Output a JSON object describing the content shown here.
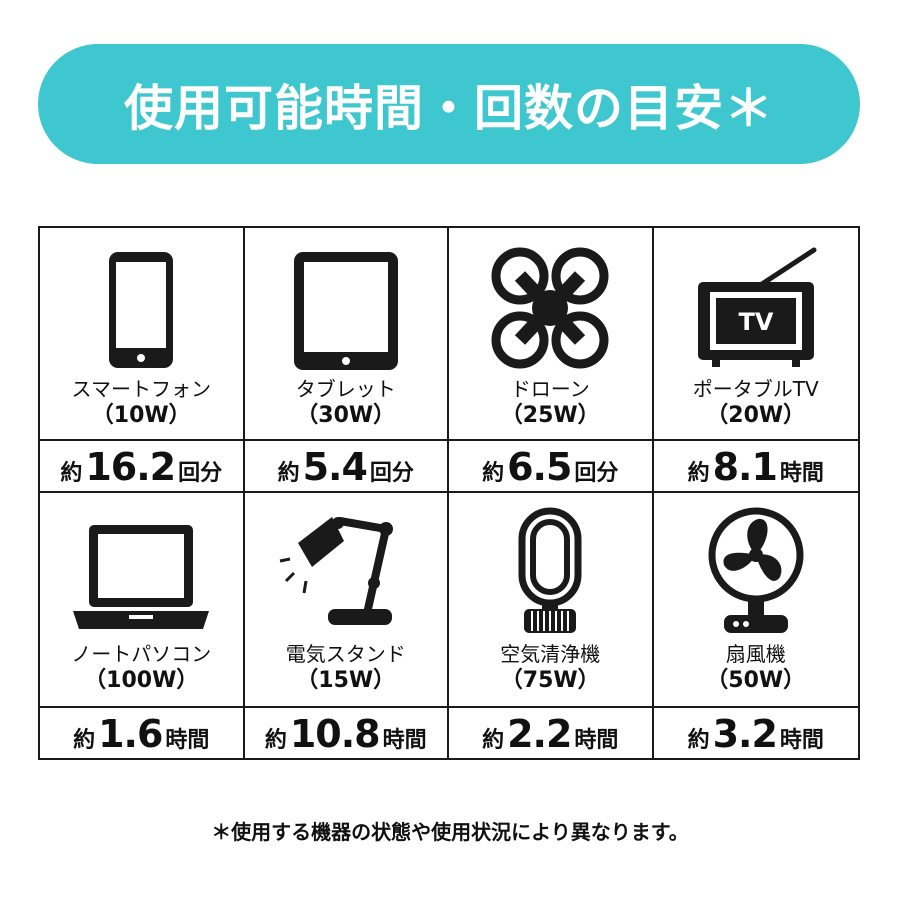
{
  "banner": {
    "title": "使用可能時間・回数の目安＊"
  },
  "colors": {
    "banner_bg": "#3ec7cf",
    "icon": "#1a1a1a"
  },
  "devices": [
    {
      "icon": "smartphone-icon",
      "label": "スマートフォン",
      "watts": "（10W）",
      "approx": "約",
      "value": "16.2",
      "unit": "回分"
    },
    {
      "icon": "tablet-icon",
      "label": "タブレット",
      "watts": "（30W）",
      "approx": "約",
      "value": "5.4",
      "unit": "回分"
    },
    {
      "icon": "drone-icon",
      "label": "ドローン",
      "watts": "（25W）",
      "approx": "約",
      "value": "6.5",
      "unit": "回分"
    },
    {
      "icon": "portable-tv-icon",
      "label": "ポータブルTV",
      "watts": "（20W）",
      "approx": "約",
      "value": "8.1",
      "unit": "時間",
      "icon_text": "TV"
    },
    {
      "icon": "laptop-icon",
      "label": "ノートパソコン",
      "watts": "（100W）",
      "approx": "約",
      "value": "1.6",
      "unit": "時間"
    },
    {
      "icon": "desk-lamp-icon",
      "label": "電気スタンド",
      "watts": "（15W）",
      "approx": "約",
      "value": "10.8",
      "unit": "時間"
    },
    {
      "icon": "air-purifier-icon",
      "label": "空気清浄機",
      "watts": "（75W）",
      "approx": "約",
      "value": "2.2",
      "unit": "時間"
    },
    {
      "icon": "electric-fan-icon",
      "label": "扇風機",
      "watts": "（50W）",
      "approx": "約",
      "value": "3.2",
      "unit": "時間"
    }
  ],
  "footnote": "＊使用する機器の状態や使用状況により異なります。"
}
